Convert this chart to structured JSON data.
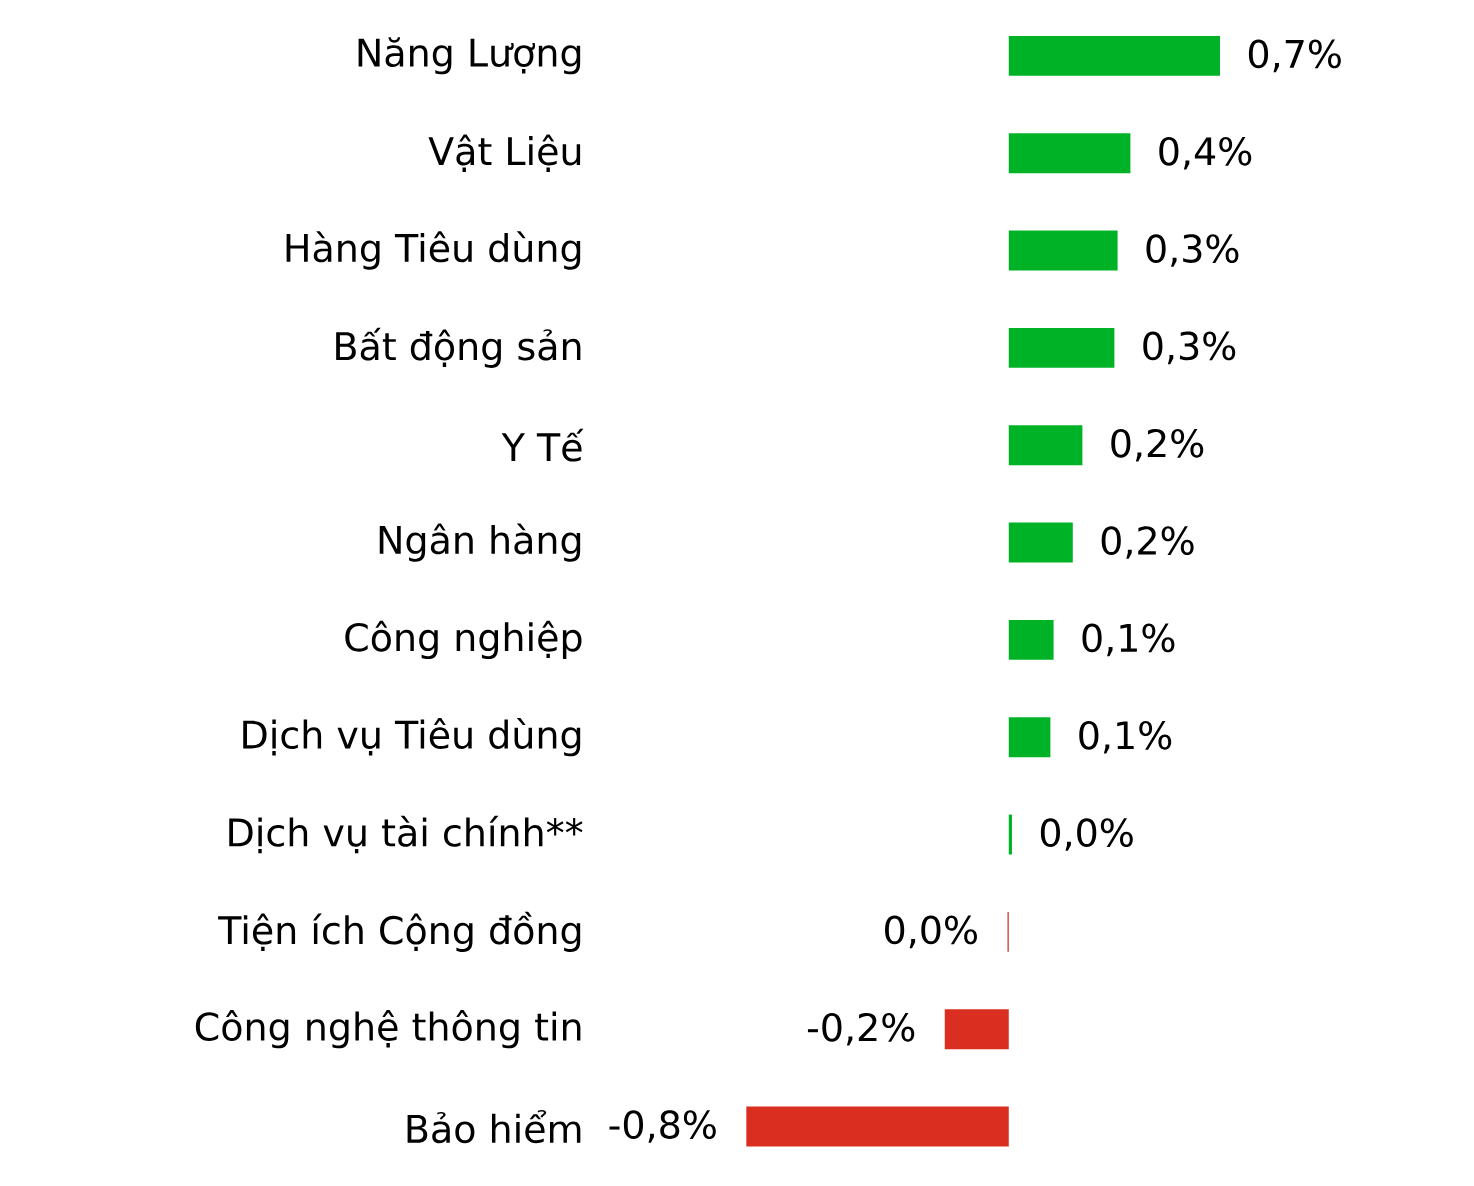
{
  "chart_data": {
    "type": "bar",
    "orientation": "horizontal",
    "categories": [
      "Năng Lượng",
      "Vật Liệu",
      "Hàng Tiêu dùng",
      "Bất động sản",
      "Y Tế",
      "Ngân hàng",
      "Công nghiệp",
      "Dịch vụ Tiêu dùng",
      "Dịch vụ tài chính**",
      "Tiện ích Cộng đồng",
      "Công nghệ thông tin",
      "Bảo hiểm"
    ],
    "values": [
      0.66,
      0.38,
      0.34,
      0.33,
      0.23,
      0.2,
      0.14,
      0.13,
      0.01,
      -0.004,
      -0.2,
      -0.82
    ],
    "value_labels": [
      "0,7%",
      "0,4%",
      "0,3%",
      "0,3%",
      "0,2%",
      "0,2%",
      "0,1%",
      "0,1%",
      "0,0%",
      "0,0%",
      "-0,2%",
      "-0,8%"
    ],
    "colors": [
      "#00b326",
      "#00b326",
      "#00b326",
      "#00b326",
      "#00b326",
      "#00b326",
      "#00b326",
      "#00b326",
      "#00b326",
      "#da2e20",
      "#da2e20",
      "#da2e20"
    ],
    "tick_labels": "y"
  }
}
